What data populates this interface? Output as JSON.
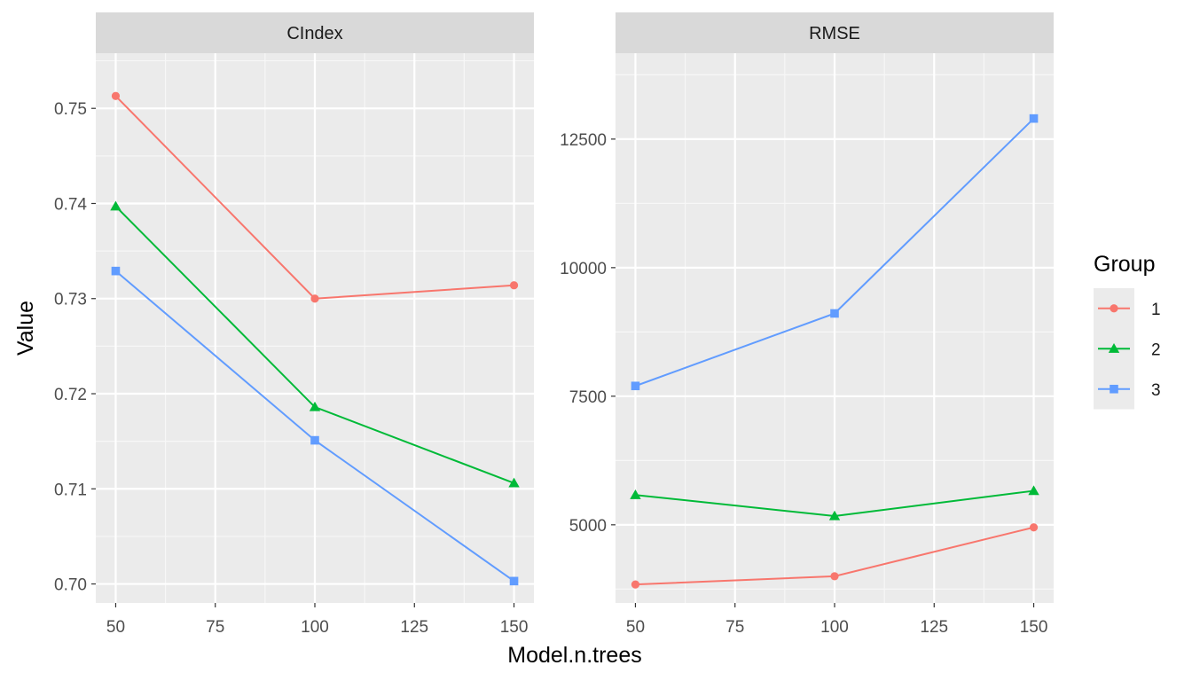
{
  "chart_data": {
    "type": "line",
    "xlabel": "Model.n.trees",
    "ylabel": "Value",
    "x": [
      50,
      100,
      150
    ],
    "x_ticks": [
      "50",
      "75",
      "100",
      "125",
      "150"
    ],
    "x_tick_values": [
      50,
      75,
      100,
      125,
      150
    ],
    "xlim": [
      45,
      155
    ],
    "legend": {
      "title": "Group",
      "position": "right"
    },
    "grid": true,
    "colors": {
      "1": "#F8766D",
      "2": "#00BA38",
      "3": "#619CFF"
    },
    "panels": [
      {
        "strip": "CIndex",
        "ylim": [
          0.698,
          0.7558
        ],
        "y_tick_values": [
          0.7,
          0.71,
          0.72,
          0.73,
          0.74,
          0.75
        ],
        "y_ticks": [
          "0.70",
          "0.71",
          "0.72",
          "0.73",
          "0.74",
          "0.75"
        ],
        "series": [
          {
            "name": "1",
            "shape": "circle",
            "values": [
              0.7513,
              0.73,
              0.7314
            ]
          },
          {
            "name": "2",
            "shape": "triangle",
            "values": [
              0.7397,
              0.7186,
              0.7106
            ]
          },
          {
            "name": "3",
            "shape": "square",
            "values": [
              0.7329,
              0.7151,
              0.7003
            ]
          }
        ]
      },
      {
        "strip": "RMSE",
        "ylim": [
          3480,
          14170
        ],
        "y_tick_values": [
          5000,
          7500,
          10000,
          12500
        ],
        "y_ticks": [
          "5000",
          "7500",
          "10000",
          "12500"
        ],
        "series": [
          {
            "name": "1",
            "shape": "circle",
            "values": [
              3840,
              4000,
              4950
            ]
          },
          {
            "name": "2",
            "shape": "triangle",
            "values": [
              5580,
              5170,
              5660
            ]
          },
          {
            "name": "3",
            "shape": "square",
            "values": [
              7700,
              9110,
              12900
            ]
          }
        ]
      }
    ]
  }
}
